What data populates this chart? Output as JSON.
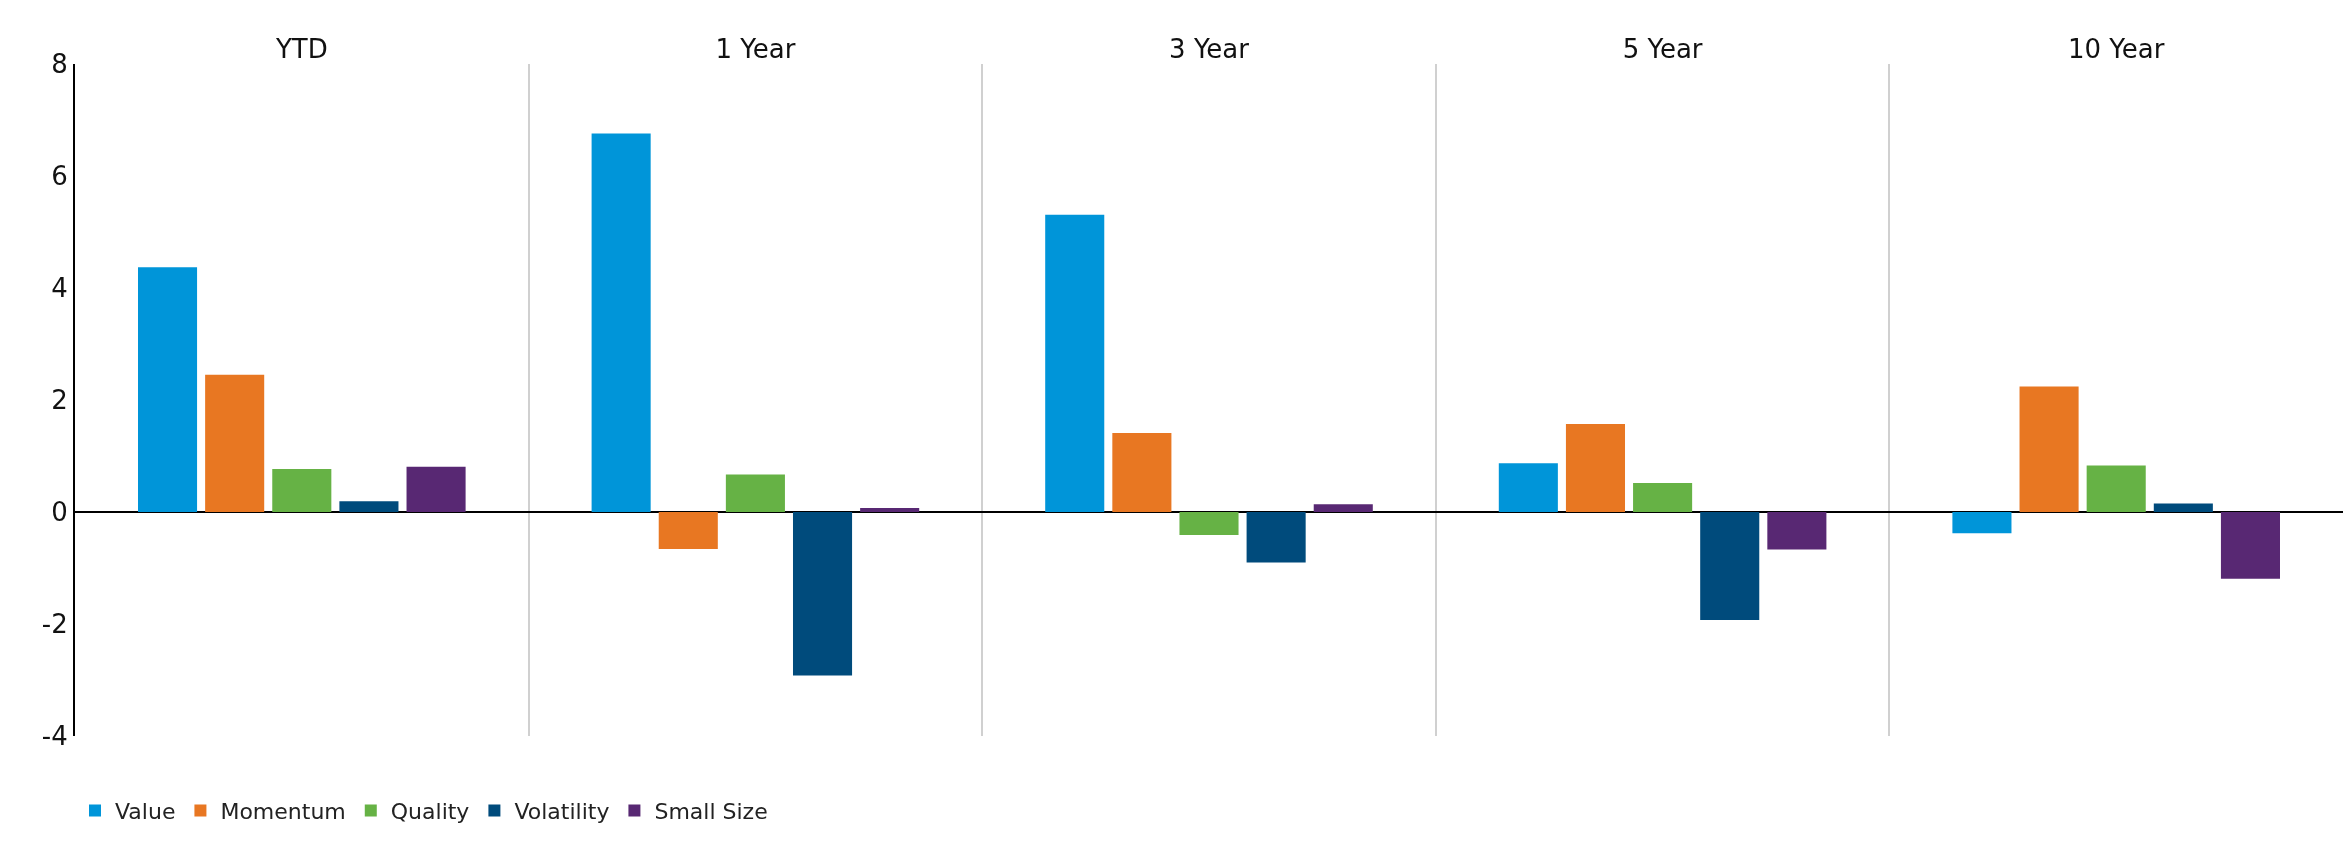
{
  "chart_data": {
    "type": "bar",
    "categories": [
      "YTD",
      "1 Year",
      "3 Year",
      "5 Year",
      "10 Year"
    ],
    "series": [
      {
        "name": "Value",
        "color": "#0095d9",
        "values": [
          4.37,
          6.76,
          5.31,
          0.87,
          -0.38
        ]
      },
      {
        "name": "Momentum",
        "color": "#e87722",
        "values": [
          2.45,
          -0.66,
          1.41,
          1.57,
          2.24
        ]
      },
      {
        "name": "Quality",
        "color": "#66b245",
        "values": [
          0.77,
          0.67,
          -0.41,
          0.52,
          0.83
        ]
      },
      {
        "name": "Volatility",
        "color": "#004b7c",
        "values": [
          0.19,
          -2.92,
          -0.9,
          -1.93,
          0.15
        ]
      },
      {
        "name": "Small Size",
        "color": "#582873",
        "values": [
          0.81,
          0.07,
          0.14,
          -0.67,
          -1.19
        ]
      }
    ],
    "ylim": [
      -4,
      8
    ],
    "yticks": [
      -4,
      -2,
      0,
      2,
      4,
      6,
      8
    ],
    "grid": "x",
    "legend": "bottom left"
  }
}
